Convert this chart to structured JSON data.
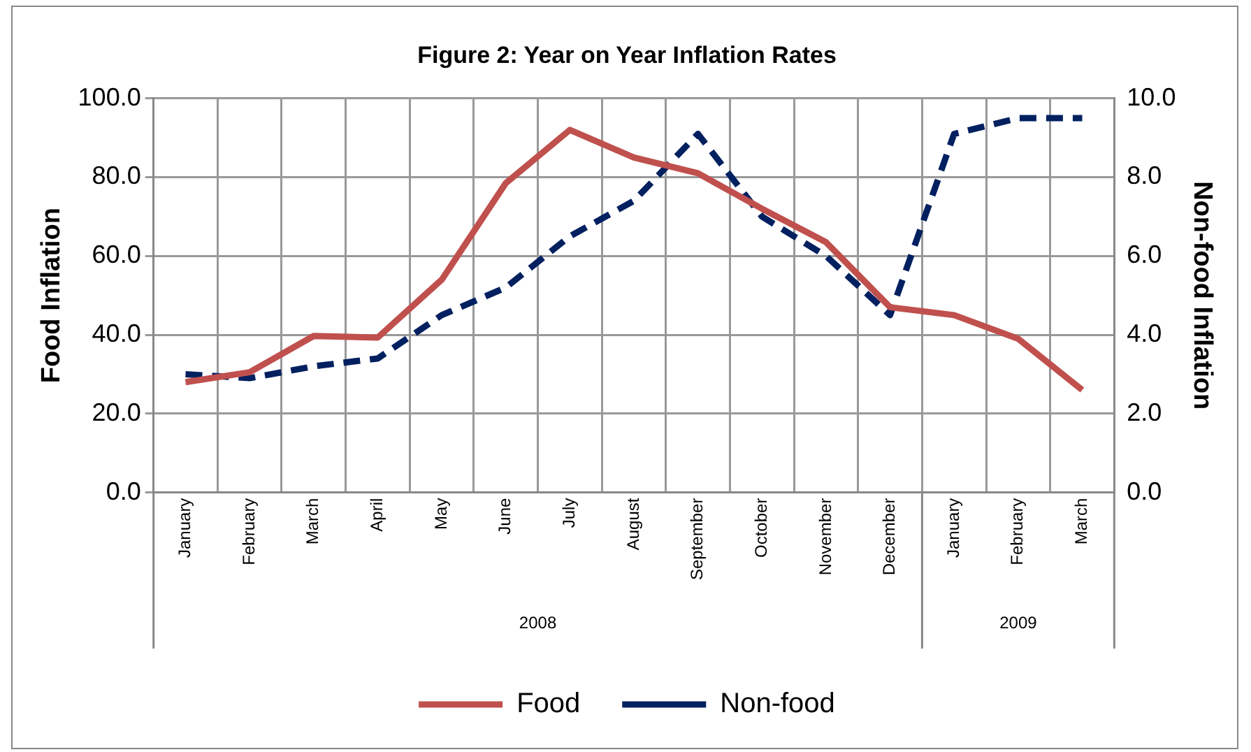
{
  "chart_data": {
    "type": "line",
    "title": "Figure 2: Year on Year Inflation Rates",
    "ylabel": "Food Inflation",
    "y2label": "Non-food Inflation",
    "categories": [
      "January",
      "February",
      "March",
      "April",
      "May",
      "June",
      "July",
      "August",
      "September",
      "October",
      "November",
      "December",
      "January",
      "February",
      "March"
    ],
    "annotations": [
      "2008",
      "2009"
    ],
    "series": [
      {
        "name": "Food",
        "color": "#c0504d",
        "values": [
          28,
          30.5,
          39.7,
          39.3,
          54,
          78.5,
          92,
          85,
          81,
          72,
          63.5,
          47,
          45,
          39,
          26
        ]
      },
      {
        "name": "Non-food",
        "color": "#002060",
        "axis": "y2",
        "line_style": "dashed",
        "values": [
          3.0,
          2.9,
          3.2,
          3.4,
          4.5,
          5.2,
          6.5,
          7.4,
          9.1,
          7.0,
          6.0,
          4.5,
          9.1,
          9.5,
          9.5
        ]
      }
    ],
    "ylim": [
      0,
      100
    ],
    "yticks": [
      {
        "value": 0,
        "label": "0.0"
      },
      {
        "value": 20,
        "label": "20.0"
      },
      {
        "value": 40,
        "label": "40.0"
      },
      {
        "value": 60,
        "label": "60.0"
      },
      {
        "value": 80,
        "label": "80.0"
      },
      {
        "value": 100,
        "label": "100.0"
      }
    ],
    "y2lim": [
      0,
      10
    ],
    "y2ticks": [
      {
        "value": 0,
        "label": "0.0"
      },
      {
        "value": 2,
        "label": "2.0"
      },
      {
        "value": 4,
        "label": "4.0"
      },
      {
        "value": 6,
        "label": "6.0"
      },
      {
        "value": 8,
        "label": "8.0"
      },
      {
        "value": 10,
        "label": "10.0"
      }
    ],
    "grid": true,
    "legend": "bottom",
    "marker": "none"
  }
}
